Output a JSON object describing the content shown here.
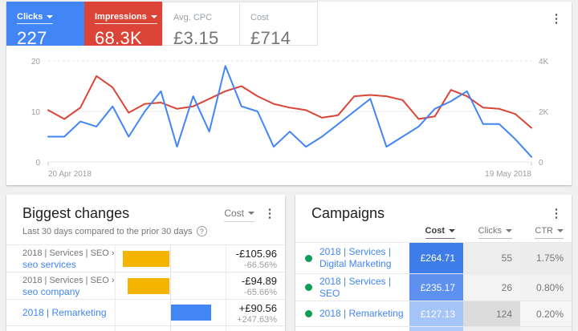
{
  "top_card": {
    "metrics": [
      {
        "id": "clicks",
        "label": "Clicks",
        "value": "227",
        "bg": "#4285F4"
      },
      {
        "id": "impressions",
        "label": "Impressions",
        "value": "68.3K",
        "bg": "#DB4437"
      },
      {
        "id": "avg_cpc",
        "label": "Avg. CPC",
        "value": "£3.15",
        "bg": "#FFFFFF"
      },
      {
        "id": "cost",
        "label": "Cost",
        "value": "£714",
        "bg": "#FFFFFF"
      }
    ]
  },
  "chart_data": {
    "type": "line",
    "title": "",
    "grid": true,
    "legend": "none",
    "x_axis": {
      "start_label": "20 Apr 2018",
      "end_label": "19 May 2018",
      "points": 31
    },
    "left_axis": {
      "name": "Clicks",
      "ticks": [
        "20",
        "10",
        "0"
      ],
      "min": 0,
      "max": 20
    },
    "right_axis": {
      "name": "Impressions",
      "ticks": [
        "4K",
        "2K",
        "0"
      ],
      "min": 0,
      "max": 4000
    },
    "series": [
      {
        "name": "Impressions",
        "axis": "right",
        "color": "#DB4437",
        "values": [
          2050,
          1700,
          2150,
          3400,
          2950,
          1950,
          2300,
          2350,
          2100,
          2200,
          2500,
          2800,
          3000,
          2600,
          2300,
          2150,
          2050,
          1750,
          1850,
          2600,
          2650,
          2600,
          2450,
          1700,
          1800,
          2850,
          2600,
          2150,
          2100,
          1900,
          1350
        ]
      },
      {
        "name": "Clicks",
        "axis": "left",
        "color": "#4285F4",
        "values": [
          5,
          5,
          8,
          7,
          11,
          5,
          10,
          14,
          3,
          13,
          6,
          19,
          11,
          10,
          3,
          6,
          3,
          5,
          7.5,
          10,
          12.5,
          3,
          5,
          7,
          10.5,
          12,
          14,
          7.5,
          7.5,
          4.5,
          1
        ]
      }
    ]
  },
  "biggest_changes": {
    "title": "Biggest changes",
    "subtitle": "Last 30 days compared to the prior 30 days",
    "help_glyph": "?",
    "metric_selector": "Cost",
    "bar_colors": {
      "negative": "#F4B400",
      "positive": "#4285F4"
    },
    "rows": [
      {
        "path_prefix": "2018 | Services | SEO ›",
        "link": "seo services",
        "amount": "-£105.96",
        "percent": "-66.56%",
        "value": -105.96
      },
      {
        "path_prefix": "2018 | Services | SEO ›",
        "link": "seo company",
        "amount": "-£94.89",
        "percent": "-65.66%",
        "value": -94.89
      },
      {
        "path_prefix": "",
        "link": "2018 | Remarketing",
        "amount": "+£90.56",
        "percent": "+247.63%",
        "value": 90.56
      }
    ]
  },
  "campaigns": {
    "title": "Campaigns",
    "status_dot_color": "#0F9D58",
    "columns": [
      {
        "label": "Cost",
        "active": true
      },
      {
        "label": "Clicks",
        "active": false
      },
      {
        "label": "CTR",
        "active": false
      }
    ],
    "rows": [
      {
        "name": "2018 | Services | Digital Marketing",
        "cost": "£264.71",
        "clicks": "55",
        "ctr": "1.75%",
        "cost_bg": "#3E7DE9",
        "clicks_bg": "#EDEDED",
        "ctr_bg": "#ECECEC"
      },
      {
        "name": "2018 | Services | SEO",
        "cost": "£235.17",
        "clicks": "26",
        "ctr": "0.80%",
        "cost_bg": "#5E91EF",
        "clicks_bg": "#F3F3F3",
        "ctr_bg": "#F2F2F2"
      },
      {
        "name": "2018 | Remarketing",
        "cost": "£127.13",
        "clicks": "124",
        "ctr": "0.20%",
        "cost_bg": "#A5C4F8",
        "clicks_bg": "#DCDCDC",
        "ctr_bg": "#F6F6F6"
      }
    ]
  }
}
